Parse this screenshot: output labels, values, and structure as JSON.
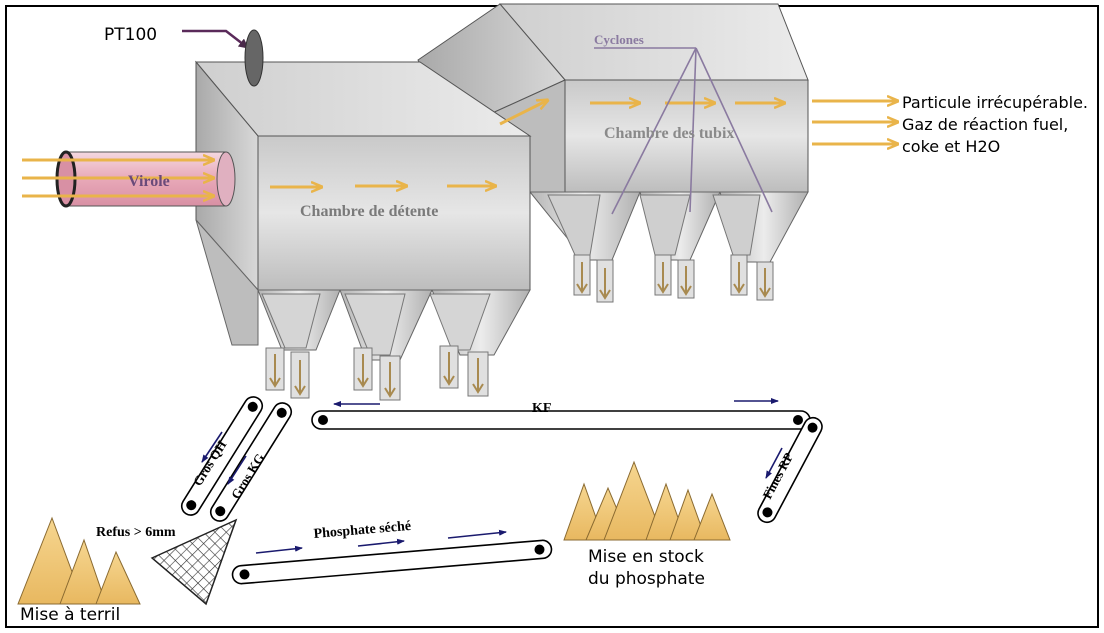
{
  "labels": {
    "pt100": "PT100",
    "cyclones": "Cyclones",
    "chambre_tubix": "Chambre des tubix",
    "virole": "Virole",
    "chambre_detente": "Chambre de détente",
    "outlet_1": "Particule irrécupérable.",
    "outlet_2": "Gaz de réaction fuel,",
    "outlet_3": "coke et H2O",
    "kf": "KF",
    "gros_qh": "Gros QH",
    "gros_kg": "Gros KG",
    "fines_rp": "Fines RP",
    "refus": "Refus > 6mm",
    "phosphate_seche": "Phosphate séché",
    "stock_1": "Mise en stock",
    "stock_2": "du phosphate",
    "terril": "Mise à terril"
  },
  "colors": {
    "flow_arrow": "#e9b44a",
    "conveyor_arrow": "#1a1a6e",
    "chamber_fill": "#d4d4d4",
    "virole_fill": "#e8a8b8",
    "pile_fill": "#f0c878",
    "pt100_line": "#5a2a5a",
    "cyclone_lines": "#8a7aa0"
  }
}
